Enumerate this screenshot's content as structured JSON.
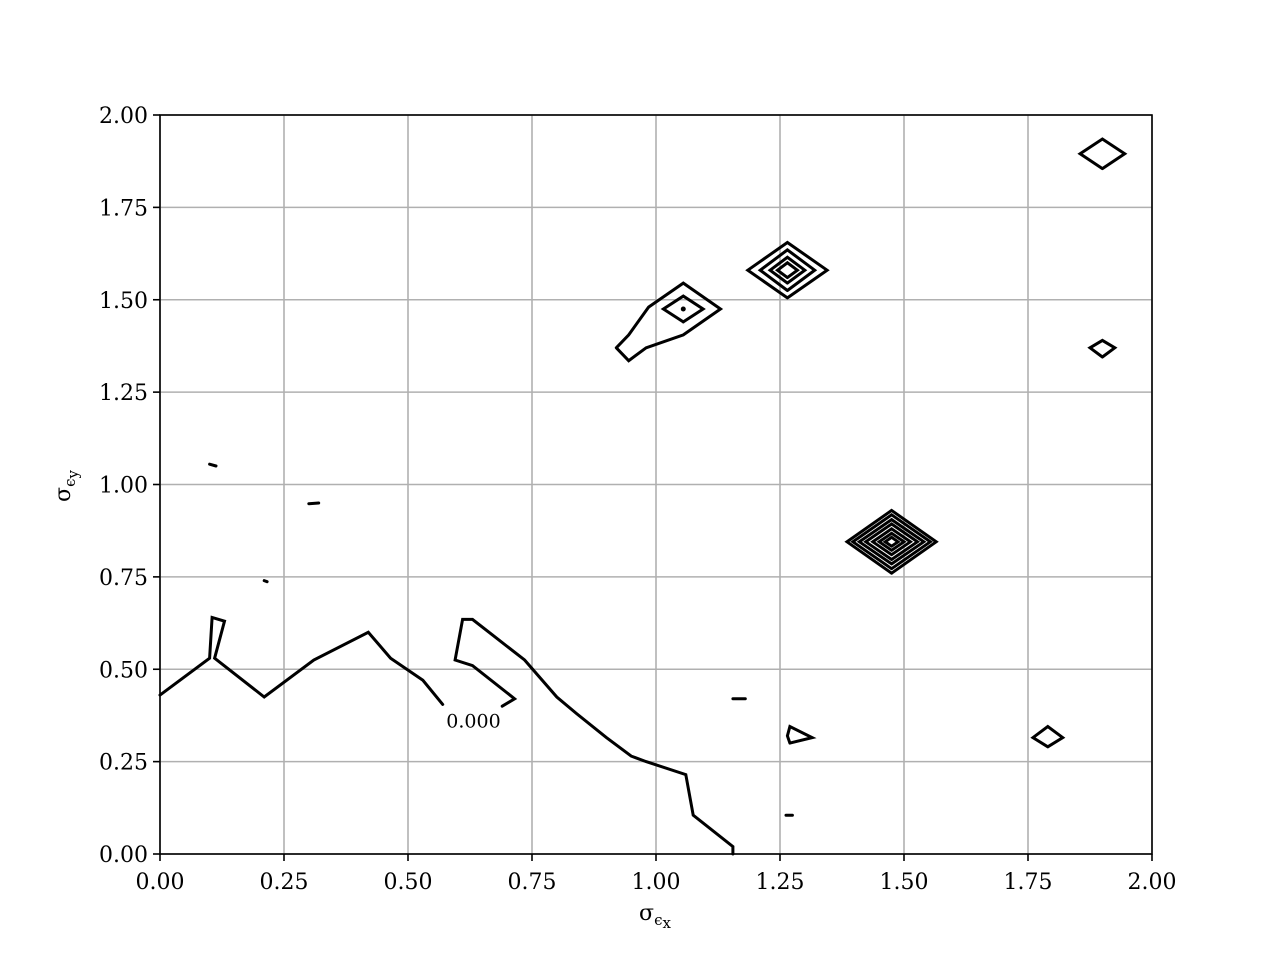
{
  "chart_data": {
    "type": "contour",
    "xlabel": {
      "symbol": "σ",
      "sub": "ϵ",
      "subsub": "x"
    },
    "ylabel": {
      "symbol": "σ",
      "sub": "ϵ",
      "subsub": "y"
    },
    "xlim": [
      0,
      2
    ],
    "ylim": [
      0,
      2
    ],
    "x_ticks": [
      {
        "value": 0.0,
        "label": "0.00"
      },
      {
        "value": 0.25,
        "label": "0.25"
      },
      {
        "value": 0.5,
        "label": "0.50"
      },
      {
        "value": 0.75,
        "label": "0.75"
      },
      {
        "value": 1.0,
        "label": "1.00"
      },
      {
        "value": 1.25,
        "label": "1.25"
      },
      {
        "value": 1.5,
        "label": "1.50"
      },
      {
        "value": 1.75,
        "label": "1.75"
      },
      {
        "value": 2.0,
        "label": "2.00"
      }
    ],
    "y_ticks": [
      {
        "value": 0.0,
        "label": "0.00"
      },
      {
        "value": 0.25,
        "label": "0.25"
      },
      {
        "value": 0.5,
        "label": "0.50"
      },
      {
        "value": 0.75,
        "label": "0.75"
      },
      {
        "value": 1.0,
        "label": "1.00"
      },
      {
        "value": 1.25,
        "label": "1.25"
      },
      {
        "value": 1.5,
        "label": "1.50"
      },
      {
        "value": 1.75,
        "label": "1.75"
      },
      {
        "value": 2.0,
        "label": "2.00"
      }
    ],
    "grid": true,
    "line_color": "#000000",
    "grid_color": "#b0b0b0",
    "contour_label": {
      "text": "0.000",
      "x": 0.632,
      "y": 0.343
    },
    "lines": [
      {
        "name": "zero-contour-left",
        "points": [
          [
            0.0,
            0.43
          ],
          [
            0.1,
            0.53
          ],
          [
            0.105,
            0.64
          ],
          [
            0.13,
            0.63
          ],
          [
            0.11,
            0.53
          ],
          [
            0.21,
            0.425
          ],
          [
            0.31,
            0.525
          ],
          [
            0.42,
            0.6
          ],
          [
            0.465,
            0.53
          ],
          [
            0.53,
            0.47
          ],
          [
            0.57,
            0.405
          ]
        ]
      },
      {
        "name": "zero-contour-right",
        "points": [
          [
            0.69,
            0.4
          ],
          [
            0.715,
            0.42
          ],
          [
            0.63,
            0.51
          ],
          [
            0.595,
            0.525
          ],
          [
            0.61,
            0.635
          ],
          [
            0.63,
            0.635
          ],
          [
            0.735,
            0.525
          ],
          [
            0.8,
            0.425
          ],
          [
            0.84,
            0.38
          ],
          [
            0.9,
            0.315
          ],
          [
            0.95,
            0.265
          ],
          [
            0.98,
            0.25
          ],
          [
            1.06,
            0.215
          ],
          [
            1.075,
            0.105
          ],
          [
            1.155,
            0.02
          ],
          [
            1.155,
            0.0
          ]
        ]
      },
      {
        "name": "contour-peak-105-outer",
        "points": [
          [
            0.92,
            1.37
          ],
          [
            0.945,
            1.335
          ],
          [
            0.98,
            1.37
          ],
          [
            1.055,
            1.405
          ],
          [
            1.13,
            1.475
          ],
          [
            1.055,
            1.545
          ],
          [
            0.985,
            1.48
          ],
          [
            0.945,
            1.405
          ],
          [
            0.92,
            1.37
          ]
        ]
      },
      {
        "name": "contour-peak-105-inner",
        "points": [
          [
            1.055,
            1.44
          ],
          [
            1.095,
            1.475
          ],
          [
            1.055,
            1.51
          ],
          [
            1.015,
            1.475
          ],
          [
            1.055,
            1.44
          ]
        ]
      },
      {
        "name": "contour-peak-127-a",
        "points": [
          [
            1.265,
            1.505
          ],
          [
            1.345,
            1.58
          ],
          [
            1.265,
            1.655
          ],
          [
            1.185,
            1.58
          ],
          [
            1.265,
            1.505
          ]
        ]
      },
      {
        "name": "contour-peak-127-b",
        "points": [
          [
            1.265,
            1.525
          ],
          [
            1.32,
            1.58
          ],
          [
            1.265,
            1.635
          ],
          [
            1.21,
            1.58
          ],
          [
            1.265,
            1.525
          ]
        ]
      },
      {
        "name": "contour-peak-127-c",
        "points": [
          [
            1.265,
            1.545
          ],
          [
            1.3,
            1.58
          ],
          [
            1.265,
            1.615
          ],
          [
            1.23,
            1.58
          ],
          [
            1.265,
            1.545
          ]
        ]
      },
      {
        "name": "contour-peak-127-d",
        "points": [
          [
            1.265,
            1.56
          ],
          [
            1.285,
            1.58
          ],
          [
            1.265,
            1.6
          ],
          [
            1.245,
            1.58
          ],
          [
            1.265,
            1.56
          ]
        ]
      },
      {
        "name": "contour-peak-190-top",
        "points": [
          [
            1.9,
            1.855
          ],
          [
            1.945,
            1.895
          ],
          [
            1.9,
            1.935
          ],
          [
            1.855,
            1.895
          ],
          [
            1.9,
            1.855
          ]
        ]
      },
      {
        "name": "contour-peak-190-mid",
        "points": [
          [
            1.9,
            1.345
          ],
          [
            1.925,
            1.37
          ],
          [
            1.9,
            1.39
          ],
          [
            1.875,
            1.37
          ],
          [
            1.9,
            1.345
          ]
        ]
      },
      {
        "name": "contour-peak-148-1",
        "points": [
          [
            1.475,
            0.76
          ],
          [
            1.565,
            0.845
          ],
          [
            1.475,
            0.93
          ],
          [
            1.385,
            0.845
          ],
          [
            1.475,
            0.76
          ]
        ]
      },
      {
        "name": "contour-peak-148-2",
        "points": [
          [
            1.475,
            0.772
          ],
          [
            1.553,
            0.845
          ],
          [
            1.475,
            0.918
          ],
          [
            1.397,
            0.845
          ],
          [
            1.475,
            0.772
          ]
        ]
      },
      {
        "name": "contour-peak-148-3",
        "points": [
          [
            1.475,
            0.785
          ],
          [
            1.54,
            0.845
          ],
          [
            1.475,
            0.905
          ],
          [
            1.41,
            0.845
          ],
          [
            1.475,
            0.785
          ]
        ]
      },
      {
        "name": "contour-peak-148-4",
        "points": [
          [
            1.475,
            0.797
          ],
          [
            1.527,
            0.845
          ],
          [
            1.475,
            0.893
          ],
          [
            1.423,
            0.845
          ],
          [
            1.475,
            0.797
          ]
        ]
      },
      {
        "name": "contour-peak-148-5",
        "points": [
          [
            1.475,
            0.81
          ],
          [
            1.513,
            0.845
          ],
          [
            1.475,
            0.88
          ],
          [
            1.437,
            0.845
          ],
          [
            1.475,
            0.81
          ]
        ]
      },
      {
        "name": "contour-peak-148-6",
        "points": [
          [
            1.475,
            0.822
          ],
          [
            1.5,
            0.845
          ],
          [
            1.475,
            0.868
          ],
          [
            1.45,
            0.845
          ],
          [
            1.475,
            0.822
          ]
        ]
      },
      {
        "name": "contour-peak-148-7",
        "points": [
          [
            1.475,
            0.833
          ],
          [
            1.488,
            0.845
          ],
          [
            1.475,
            0.857
          ],
          [
            1.462,
            0.845
          ],
          [
            1.475,
            0.833
          ]
        ]
      },
      {
        "name": "contour-peak-180",
        "points": [
          [
            1.79,
            0.29
          ],
          [
            1.82,
            0.315
          ],
          [
            1.79,
            0.345
          ],
          [
            1.76,
            0.315
          ],
          [
            1.79,
            0.29
          ]
        ]
      },
      {
        "name": "contour-peak-128-triangle",
        "points": [
          [
            1.27,
            0.3
          ],
          [
            1.315,
            0.315
          ],
          [
            1.27,
            0.345
          ],
          [
            1.265,
            0.32
          ],
          [
            1.27,
            0.3
          ]
        ]
      },
      {
        "name": "contour-dash-117",
        "points": [
          [
            1.155,
            0.42
          ],
          [
            1.18,
            0.42
          ]
        ]
      },
      {
        "name": "contour-dash-031",
        "points": [
          [
            0.3,
            0.948
          ],
          [
            0.32,
            0.95
          ]
        ]
      },
      {
        "name": "contour-dot-010",
        "points": [
          [
            0.1,
            1.055
          ],
          [
            0.113,
            1.05
          ]
        ]
      },
      {
        "name": "contour-dot-021",
        "points": [
          [
            0.21,
            0.74
          ],
          [
            0.216,
            0.737
          ]
        ]
      },
      {
        "name": "contour-dot-127",
        "points": [
          [
            1.262,
            0.105
          ],
          [
            1.275,
            0.105
          ]
        ]
      }
    ],
    "center_dots": [
      {
        "name": "peak-dot-105",
        "x": 1.055,
        "y": 1.475
      }
    ]
  }
}
